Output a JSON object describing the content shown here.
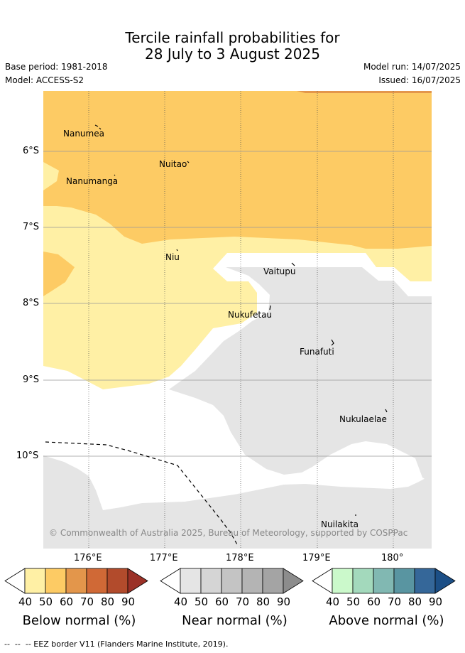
{
  "title": {
    "line1": "Tercile rainfall probabilities for",
    "line2": "28 July to 3 August 2025"
  },
  "meta": {
    "base_period": "Base period: 1981-2018",
    "model": "Model: ACCESS-S2",
    "model_run": "Model run: 14/07/2025",
    "issued": "Issued: 16/07/2025"
  },
  "map": {
    "lat_labels": [
      "6°S",
      "7°S",
      "8°S",
      "9°S",
      "10°S"
    ],
    "lon_labels": [
      "176°E",
      "177°E",
      "178°E",
      "179°E",
      "180°"
    ],
    "places": [
      "Nanumea",
      "Nuitao",
      "Nanumanga",
      "Niu",
      "Vaitupu",
      "Nukufetau",
      "Funafuti",
      "Nukulaelae",
      "Nuilakita"
    ],
    "copyright": "© Commonwealth of Australia 2025, Bureau of Meteorology, supported by COSPPac",
    "colors": {
      "below_40": "#fff0a5",
      "below_50": "#fdcb64",
      "below_60": "#e3964b",
      "near_40": "#e5e5e5",
      "background": "#ffffff"
    }
  },
  "colorbars": [
    {
      "title": "Below normal (%)",
      "ticks": [
        "40",
        "50",
        "60",
        "70",
        "80",
        "90"
      ],
      "colors": [
        "#fff0a5",
        "#fdcb64",
        "#e3964b",
        "#d06936",
        "#b24b2c",
        "#9b3127"
      ]
    },
    {
      "title": "Near normal (%)",
      "ticks": [
        "40",
        "50",
        "60",
        "70",
        "80",
        "90"
      ],
      "colors": [
        "#e5e5e5",
        "#d5d5d5",
        "#c4c4c4",
        "#b4b4b4",
        "#a4a4a4",
        "#8c8c8c"
      ]
    },
    {
      "title": "Above normal (%)",
      "ticks": [
        "40",
        "50",
        "60",
        "70",
        "80",
        "90"
      ],
      "colors": [
        "#cbf9cb",
        "#a3d9bc",
        "#81b8b2",
        "#5995a1",
        "#356799",
        "#1c4f86"
      ]
    }
  ],
  "footer": "--  --  -- EEZ border V11 (Flanders Marine Institute, 2019)."
}
